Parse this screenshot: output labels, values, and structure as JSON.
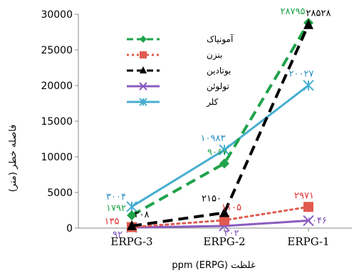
{
  "chart_data": {
    "type": "line",
    "categories": [
      "ERPG-3",
      "ERPG-2",
      "ERPG-1"
    ],
    "xlabel": "غلظت ppm  (ERPG)",
    "ylabel": "فاصله خطر (متر)",
    "ylim": [
      0,
      30000
    ],
    "yticks": [
      "0",
      "5000",
      "10000",
      "15000",
      "20000",
      "25000",
      "30000"
    ],
    "grid": false,
    "legend_position": "top-left",
    "series": [
      {
        "name": "آمونیاک",
        "color": "#1fa34a",
        "marker": "diamond",
        "dash": "dash",
        "values": [
          1792,
          9067,
          28795
        ],
        "labels": [
          "۱۷۹۲",
          "۹۰۶۷",
          "۲۸۷۹۵"
        ],
        "label_color": "#1fa34a"
      },
      {
        "name": "بنزن",
        "color": "#e05a4e",
        "marker": "square",
        "dash": "dot",
        "values": [
          135,
          1105,
          2971
        ],
        "labels": [
          "۱۳۵",
          "۱۱۰۵",
          "۲۹۷۱"
        ],
        "label_color": "#e03030"
      },
      {
        "name": "بوتادین",
        "color": "#000000",
        "marker": "triangle",
        "dash": "dash",
        "values": [
          308,
          2150,
          28528
        ],
        "labels": [
          "۳۰۸",
          "۲۱۵۰",
          "۲۸۵۲۸"
        ],
        "label_color": "#000000"
      },
      {
        "name": "تولوئن",
        "color": "#8a5cc0",
        "marker": "x",
        "dash": "solid",
        "values": [
          92,
          302,
          1046
        ],
        "labels": [
          "۹۲",
          "۳۰۲",
          "۱۰۴۶"
        ],
        "label_color": "#7a4fb5"
      },
      {
        "name": "کلر",
        "color": "#47aed0",
        "marker": "star",
        "dash": "solid",
        "values": [
          3004,
          10983,
          20027
        ],
        "labels": [
          "۳۰۰۴",
          "۱۰۹۸۳",
          "۲۰۰۲۷"
        ],
        "label_color": "#2f8fc0"
      }
    ]
  }
}
